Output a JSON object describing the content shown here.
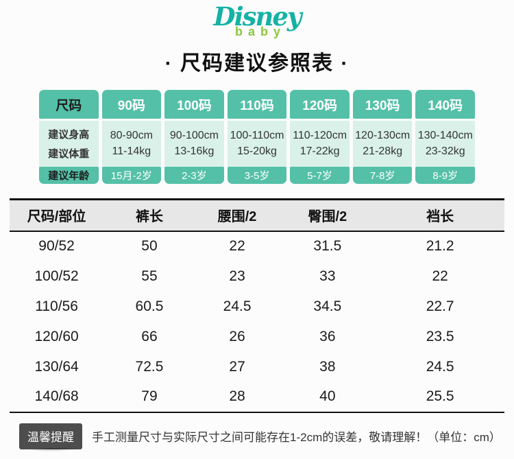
{
  "logo": {
    "disney": "Disney",
    "baby": "baby"
  },
  "title": "· 尺码建议参照表 ·",
  "size_table": {
    "header_label": "尺码",
    "row_labels": [
      "建议身高",
      "建议体重",
      "建议年龄"
    ],
    "columns": [
      {
        "size": "90码",
        "height": "80-90cm",
        "weight": "11-14kg",
        "age": "15月-2岁"
      },
      {
        "size": "100码",
        "height": "90-100cm",
        "weight": "13-16kg",
        "age": "2-3岁"
      },
      {
        "size": "110码",
        "height": "100-110cm",
        "weight": "15-20kg",
        "age": "3-5岁"
      },
      {
        "size": "120码",
        "height": "110-120cm",
        "weight": "17-22kg",
        "age": "5-7岁"
      },
      {
        "size": "130码",
        "height": "120-130cm",
        "weight": "21-28kg",
        "age": "7-8岁"
      },
      {
        "size": "140码",
        "height": "130-140cm",
        "weight": "23-32kg",
        "age": "8-9岁"
      }
    ]
  },
  "measure_table": {
    "headers": [
      "尺码/部位",
      "裤长",
      "腰围/2",
      "臀围/2",
      "裆长"
    ],
    "rows": [
      [
        "90/52",
        "50",
        "22",
        "31.5",
        "21.2"
      ],
      [
        "100/52",
        "55",
        "23",
        "33",
        "22"
      ],
      [
        "110/56",
        "60.5",
        "24.5",
        "34.5",
        "22.7"
      ],
      [
        "120/60",
        "66",
        "26",
        "36",
        "23.5"
      ],
      [
        "130/64",
        "72.5",
        "27",
        "38",
        "24.5"
      ],
      [
        "140/68",
        "79",
        "28",
        "40",
        "25.5"
      ]
    ]
  },
  "note": {
    "badge": "温馨提醒",
    "text": "手工测量尺寸与实际尺寸之间可能存在1-2cm的误差，敬请理解！（单位：cm）"
  },
  "colors": {
    "teal": "#54c0a7",
    "mint": "#d9f1e8",
    "badge": "#4d4d4d",
    "disney": "#14b2a4",
    "baby": "#8cc63f",
    "head_gray": "#e7e7e7"
  }
}
